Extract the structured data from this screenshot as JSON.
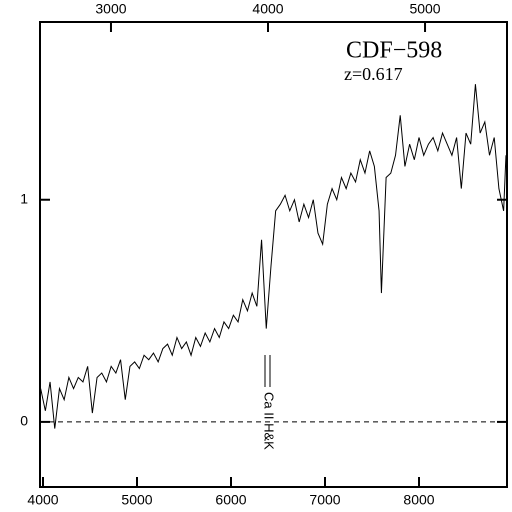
{
  "chart_data": {
    "type": "line",
    "title": "CDF−598",
    "subtitle": "z=0.617",
    "annotation": "Ca II H&K",
    "x": [
      3975,
      4025,
      4075,
      4125,
      4175,
      4225,
      4275,
      4325,
      4375,
      4425,
      4475,
      4525,
      4575,
      4625,
      4675,
      4725,
      4775,
      4825,
      4875,
      4925,
      4975,
      5025,
      5075,
      5125,
      5175,
      5225,
      5275,
      5325,
      5375,
      5425,
      5475,
      5525,
      5575,
      5625,
      5675,
      5725,
      5775,
      5825,
      5875,
      5925,
      5975,
      6025,
      6075,
      6125,
      6175,
      6225,
      6275,
      6325,
      6375,
      6425,
      6475,
      6525,
      6575,
      6625,
      6675,
      6725,
      6775,
      6825,
      6875,
      6925,
      6975,
      7025,
      7075,
      7125,
      7175,
      7225,
      7275,
      7325,
      7375,
      7425,
      7475,
      7525,
      7575,
      7600,
      7650,
      7700,
      7750,
      7800,
      7850,
      7900,
      7950,
      8000,
      8050,
      8100,
      8150,
      8200,
      8250,
      8300,
      8350,
      8400,
      8450,
      8500,
      8550,
      8600,
      8650,
      8700,
      8750,
      8800,
      8850,
      8900,
      8925
    ],
    "series": [
      {
        "color": "#000000",
        "values": [
          0.15,
          0.05,
          0.18,
          -0.03,
          0.15,
          0.1,
          0.2,
          0.15,
          0.2,
          0.18,
          0.25,
          0.04,
          0.2,
          0.22,
          0.18,
          0.25,
          0.22,
          0.28,
          0.1,
          0.25,
          0.27,
          0.24,
          0.3,
          0.28,
          0.31,
          0.27,
          0.33,
          0.35,
          0.3,
          0.38,
          0.33,
          0.36,
          0.3,
          0.38,
          0.34,
          0.4,
          0.36,
          0.42,
          0.38,
          0.45,
          0.42,
          0.48,
          0.45,
          0.55,
          0.5,
          0.58,
          0.52,
          0.82,
          0.42,
          0.7,
          0.95,
          0.98,
          1.02,
          0.95,
          1.0,
          0.9,
          0.98,
          0.92,
          1.0,
          0.85,
          0.8,
          0.98,
          1.05,
          1.0,
          1.1,
          1.05,
          1.12,
          1.08,
          1.18,
          1.12,
          1.22,
          1.15,
          0.95,
          0.58,
          1.1,
          1.12,
          1.2,
          1.38,
          1.15,
          1.25,
          1.18,
          1.28,
          1.2,
          1.25,
          1.28,
          1.22,
          1.3,
          1.25,
          1.2,
          1.28,
          1.05,
          1.3,
          1.25,
          1.52,
          1.3,
          1.35,
          1.2,
          1.28,
          1.05,
          0.95,
          1.2
        ]
      }
    ],
    "xlim": [
      3968,
      8936
    ],
    "xticks": [
      4000,
      5000,
      6000,
      7000,
      8000
    ],
    "x2lim": [
      2548,
      5522
    ],
    "x2ticks": [
      3000,
      4000,
      5000
    ],
    "ylim": [
      -0.293,
      1.8
    ],
    "yticks": [
      0,
      1
    ],
    "zero_line": true
  }
}
